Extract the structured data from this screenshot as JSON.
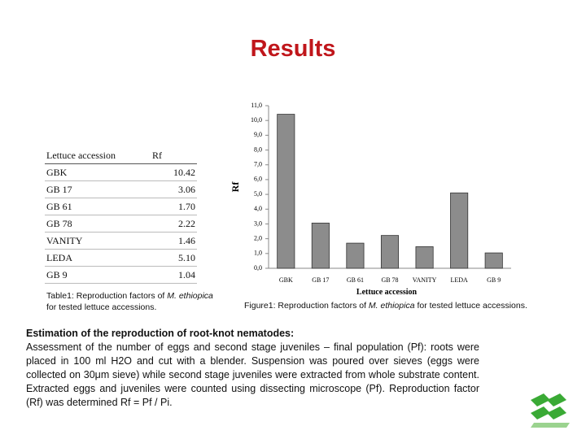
{
  "title": "Results",
  "table": {
    "header": [
      "Lettuce accession",
      "Rf"
    ],
    "rows": [
      [
        "GBK",
        "10.42"
      ],
      [
        "GB 17",
        "3.06"
      ],
      [
        "GB 61",
        "1.70"
      ],
      [
        "GB 78",
        "2.22"
      ],
      [
        "VANITY",
        "1.46"
      ],
      [
        "LEDA",
        "5.10"
      ],
      [
        "GB 9",
        "1.04"
      ]
    ],
    "caption": {
      "before": "Table1: Reproduction factors of ",
      "species": "M. ethiopica",
      "after": "for tested lettuce accessions."
    }
  },
  "figure_caption": {
    "before": "Figure1: Reproduction factors of ",
    "species": "M. ethiopica",
    "after": " for tested lettuce accessions."
  },
  "section": {
    "heading": "Estimation of the reproduction of root-knot nematodes:",
    "body": "Assessment of the number of eggs and second stage juveniles – final population (Pf): roots were placed in 100 ml H2O and cut with a blender. Suspension was poured over sieves (eggs were collected on 30μm sieve) while second stage juveniles were extracted from whole substrate content. Extracted eggs and juveniles were counted using dissecting microscope (Pf). Reproduction factor (Rf) was determined Rf = Pf / Pi."
  },
  "chart_data": {
    "type": "bar",
    "x_label": "Lettuce accession",
    "y_label": "Rf",
    "categories": [
      "GBK",
      "GB 17",
      "GB 61",
      "GB 78",
      "VANITY",
      "LEDA",
      "GB 9"
    ],
    "values": [
      10.42,
      3.06,
      1.7,
      2.22,
      1.46,
      5.1,
      1.04
    ],
    "color": "#8c8c8c",
    "ylim": [
      0,
      11
    ],
    "yticks": [
      {
        "value": 0,
        "label": "0,0"
      },
      {
        "value": 1,
        "label": "1,0"
      },
      {
        "value": 2,
        "label": "2,0"
      },
      {
        "value": 3,
        "label": "3,0"
      },
      {
        "value": 4,
        "label": "4,0"
      },
      {
        "value": 5,
        "label": "5,0"
      },
      {
        "value": 6,
        "label": "6,0"
      },
      {
        "value": 7,
        "label": "7,0"
      },
      {
        "value": 8,
        "label": "8,0"
      },
      {
        "value": 9,
        "label": "9,0"
      },
      {
        "value": 10,
        "label": "10,0"
      },
      {
        "value": 11,
        "label": "11,0"
      }
    ],
    "grid": false
  }
}
